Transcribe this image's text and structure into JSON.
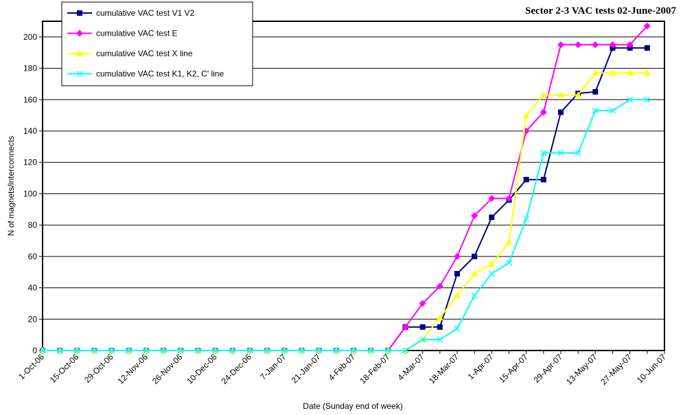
{
  "chart_data": {
    "type": "line",
    "title": "Sector 2-3 VAC tests 02-June-2007",
    "x_label": "Date (Sunday end of week)",
    "y_label": "N of magnets/interconnects",
    "categories": [
      "1-Oct-06",
      null,
      "15-Oct-06",
      null,
      "29-Oct-06",
      null,
      "12-Nov-06",
      null,
      "26-Nov-06",
      null,
      "10-Dec-06",
      null,
      "24-Dec-06",
      null,
      "7-Jan-07",
      null,
      "21-Jan-07",
      null,
      "4-Feb-07",
      null,
      "18-Feb-07",
      null,
      "4-Mar-07",
      null,
      "18-Mar-07",
      null,
      "1-Apr-07",
      null,
      "15-Apr-07",
      null,
      "29-Apr-07",
      null,
      "13-May-07",
      null,
      "27-May-07",
      null,
      "10-Jun-07"
    ],
    "ylim": [
      0,
      210
    ],
    "yticks": [
      0,
      20,
      40,
      60,
      80,
      100,
      120,
      140,
      160,
      180,
      200
    ],
    "grid": true,
    "legend": "top-left",
    "series": [
      {
        "name": "cumulative VAC test V1 V2",
        "color": "#000080",
        "marker": "square",
        "values": [
          0,
          0,
          0,
          0,
          0,
          0,
          0,
          0,
          0,
          0,
          0,
          0,
          0,
          0,
          0,
          0,
          0,
          0,
          0,
          0,
          0,
          15,
          15,
          15,
          49,
          60,
          85,
          96,
          109,
          109,
          152,
          164,
          165,
          193,
          193,
          193,
          null
        ]
      },
      {
        "name": "cumulative VAC test E",
        "color": "#ff00ff",
        "marker": "diamond",
        "values": [
          0,
          0,
          0,
          0,
          0,
          0,
          0,
          0,
          0,
          0,
          0,
          0,
          0,
          0,
          0,
          0,
          0,
          0,
          0,
          0,
          0,
          15,
          30,
          41,
          60,
          86,
          97,
          97,
          140,
          152,
          195,
          195,
          195,
          195,
          195,
          207,
          null
        ]
      },
      {
        "name": "cumulative VAC test X line",
        "color": "#ffff00",
        "marker": "triangle",
        "values": [
          0,
          0,
          0,
          0,
          0,
          0,
          0,
          0,
          0,
          0,
          0,
          0,
          0,
          0,
          0,
          0,
          0,
          0,
          0,
          0,
          0,
          0,
          7,
          21,
          35,
          49,
          55,
          69,
          150,
          163,
          163,
          163,
          177,
          177,
          177,
          177,
          null
        ]
      },
      {
        "name": "cumulative VAC test K1, K2, C' line",
        "color": "#00ffff",
        "marker": "x",
        "values": [
          0,
          0,
          0,
          0,
          0,
          0,
          0,
          0,
          0,
          0,
          0,
          0,
          0,
          0,
          0,
          0,
          0,
          0,
          0,
          0,
          0,
          0,
          7,
          7,
          14,
          35,
          49,
          56,
          84,
          126,
          126,
          126,
          153,
          153,
          160,
          160,
          null
        ]
      }
    ]
  }
}
